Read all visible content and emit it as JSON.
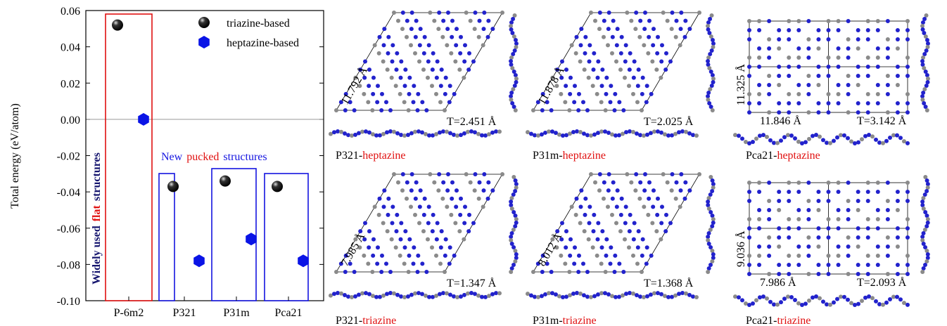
{
  "chart_data": {
    "type": "scatter",
    "y_label": "Total energy (eV/atom)",
    "categories": [
      "P-6m2",
      "P321",
      "P31m",
      "Pca21"
    ],
    "series": [
      {
        "name": "triazine-based",
        "color": "#000000",
        "marker": "sphere",
        "values": [
          0.052,
          -0.037,
          -0.034,
          -0.037
        ]
      },
      {
        "name": "heptazine-based",
        "color": "#0a14e6",
        "marker": "hexagon",
        "values": [
          0.0,
          -0.078,
          -0.066,
          -0.078
        ]
      }
    ],
    "ylim": [
      -0.1,
      0.06
    ],
    "yticks": [
      {
        "value": -0.1,
        "label": "-0.10"
      },
      -0.08,
      -0.06,
      -0.04,
      -0.02,
      {
        "value": 0,
        "label": "0.00"
      },
      0.02,
      0.04,
      0.06
    ],
    "zero_line": true,
    "legend": "upper right",
    "rotated_note": [
      {
        "text": "Widely used",
        "color": "#14146e"
      },
      {
        "text": "flat",
        "color": "#e01010"
      },
      {
        "text": "structures",
        "color": "#14146e"
      }
    ],
    "box_note": [
      {
        "text": "New",
        "color": "#1414e0"
      },
      {
        "text": "pucked",
        "color": "#e01010"
      },
      {
        "text": "structures",
        "color": "#1414e0"
      }
    ]
  },
  "panels": [
    {
      "lattice": "hex",
      "edge_label": "11.792 Å",
      "thickness": "T=2.451 Å",
      "caption": [
        {
          "text": "P321-",
          "color": "#000"
        },
        {
          "text": "heptazine",
          "color": "#e01010"
        }
      ]
    },
    {
      "lattice": "hex",
      "edge_label": "11.878 Å",
      "thickness": "T=2.025 Å",
      "caption": [
        {
          "text": "P31m-",
          "color": "#000"
        },
        {
          "text": "heptazine",
          "color": "#e01010"
        }
      ]
    },
    {
      "lattice": "rect",
      "edge_label": "11.325 Å",
      "width_label": "11.846 Å",
      "thickness": "T=3.142 Å",
      "caption": [
        {
          "text": "Pca21-",
          "color": "#000"
        },
        {
          "text": "heptazine",
          "color": "#e01010"
        }
      ]
    },
    {
      "lattice": "hex",
      "edge_label": "7.985 Å",
      "thickness": "T=1.347 Å",
      "caption": [
        {
          "text": "P321-",
          "color": "#000"
        },
        {
          "text": "triazine",
          "color": "#e01010"
        }
      ]
    },
    {
      "lattice": "hex",
      "edge_label": "8.012 Å",
      "thickness": "T=1.368 Å",
      "caption": [
        {
          "text": "P31m-",
          "color": "#000"
        },
        {
          "text": "triazine",
          "color": "#e01010"
        }
      ]
    },
    {
      "lattice": "rect",
      "edge_label": "9.036 Å",
      "width_label": "7.986 Å",
      "thickness": "T=2.093 Å",
      "caption": [
        {
          "text": "Pca21-",
          "color": "#000"
        },
        {
          "text": "triazine",
          "color": "#e01010"
        }
      ]
    }
  ]
}
